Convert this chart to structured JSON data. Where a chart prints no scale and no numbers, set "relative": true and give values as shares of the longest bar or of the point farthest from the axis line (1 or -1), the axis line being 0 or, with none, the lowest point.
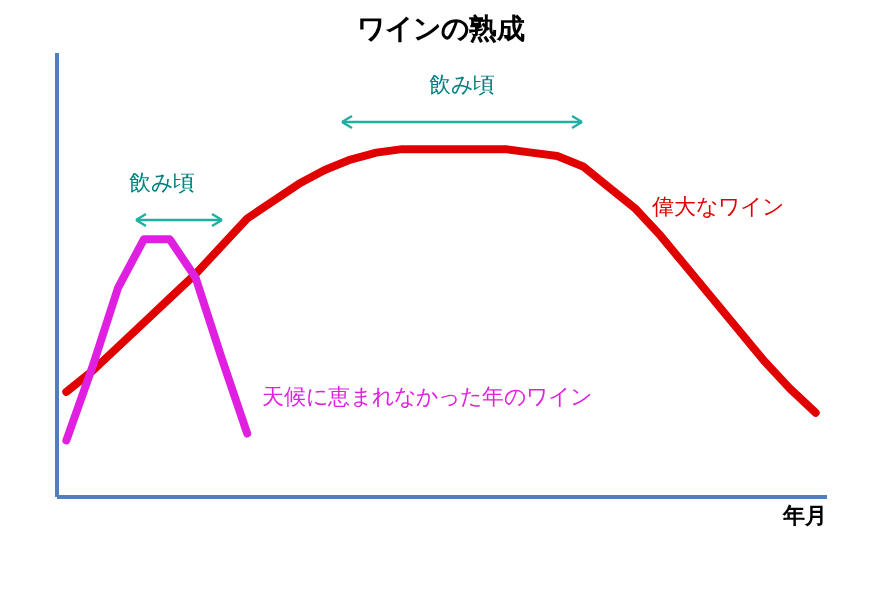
{
  "chart_data": {
    "type": "line",
    "title": "ワインの熟成",
    "xlabel": "年月",
    "relative": true,
    "tick_labels": false,
    "grid": false,
    "legend": false,
    "marker": "none",
    "line_style": "solid",
    "categories": [
      null,
      null,
      null,
      null,
      null,
      null,
      null,
      null,
      null,
      null,
      null,
      null,
      null,
      null,
      null,
      null,
      null,
      null,
      null,
      null,
      null,
      null,
      null,
      null,
      null,
      null,
      null,
      null,
      null,
      null
    ],
    "series": [
      {
        "name": "偉大なワイン",
        "color": "#e00000",
        "values": [
          0.3,
          0.36,
          0.43,
          0.5,
          0.57,
          0.64,
          0.72,
          0.8,
          0.85,
          0.9,
          0.94,
          0.97,
          0.99,
          1.0,
          1.0,
          1.0,
          1.0,
          1.0,
          0.99,
          0.98,
          0.95,
          0.89,
          0.83,
          0.75,
          0.66,
          0.57,
          0.48,
          0.39,
          0.31,
          0.24
        ]
      },
      {
        "name": "天候に恵まれなかった年のワイン",
        "color": "#e020e0",
        "values": [
          0.16,
          0.37,
          0.6,
          0.74,
          0.74,
          0.63,
          0.4,
          0.18,
          null,
          null,
          null,
          null,
          null,
          null,
          null,
          null,
          null,
          null,
          null,
          null,
          null,
          null,
          null,
          null,
          null,
          null,
          null,
          null,
          null,
          null
        ]
      }
    ],
    "annotations": [
      "飲み頃",
      "飲み頃"
    ]
  }
}
